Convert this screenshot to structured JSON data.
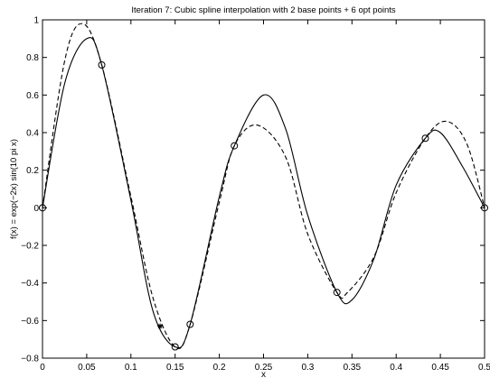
{
  "chart_data": {
    "type": "line",
    "title": "Iteration 7: Cubic spline interpolation with 2 base points + 6 opt points",
    "xlabel": "x",
    "ylabel": "f(x) = exp(−2x) sin(10 pi x)",
    "xlim": [
      0,
      0.5
    ],
    "ylim": [
      -0.8,
      1
    ],
    "x_ticks": [
      0,
      0.05,
      0.1,
      0.15,
      0.2,
      0.25,
      0.3,
      0.35,
      0.4,
      0.45,
      0.5
    ],
    "x_tick_labels": [
      "0",
      "0.05",
      "0.1",
      "0.15",
      "0.2",
      "0.25",
      "0.3",
      "0.35",
      "0.4",
      "0.45",
      "0.5"
    ],
    "y_ticks": [
      -0.8,
      -0.6,
      -0.4,
      -0.2,
      0,
      0.2,
      0.4,
      0.6,
      0.8,
      1
    ],
    "y_tick_labels": [
      "−0.8",
      "−0.6",
      "−0.4",
      "−0.2",
      "0",
      "0.2",
      "0.4",
      "0.6",
      "0.8",
      "1"
    ],
    "grid": false,
    "legend": "none",
    "series": [
      {
        "style": "solid",
        "color": "#000000",
        "x": [
          0,
          0.025,
          0.05,
          0.067,
          0.1,
          0.125,
          0.15,
          0.167,
          0.2,
          0.217,
          0.25,
          0.275,
          0.3,
          0.333,
          0.35,
          0.375,
          0.4,
          0.433,
          0.45,
          0.475,
          0.5
        ],
        "y": [
          0,
          0.66,
          0.9,
          0.76,
          0.04,
          -0.55,
          -0.74,
          -0.62,
          0.06,
          0.33,
          0.6,
          0.42,
          -0.04,
          -0.45,
          -0.49,
          -0.27,
          0.12,
          0.37,
          0.4,
          0.22,
          0
        ]
      },
      {
        "style": "dashed",
        "color": "#000000",
        "x": [
          0,
          0.025,
          0.045,
          0.067,
          0.1,
          0.125,
          0.15,
          0.167,
          0.2,
          0.217,
          0.243,
          0.275,
          0.3,
          0.333,
          0.345,
          0.375,
          0.4,
          0.433,
          0.457,
          0.48,
          0.5
        ],
        "y": [
          0,
          0.78,
          0.98,
          0.76,
          0.06,
          -0.48,
          -0.74,
          -0.62,
          0.03,
          0.33,
          0.44,
          0.27,
          -0.14,
          -0.45,
          -0.45,
          -0.26,
          0.08,
          0.37,
          0.46,
          0.34,
          0
        ]
      }
    ],
    "markers": {
      "circles": {
        "x": [
          0,
          0.067,
          0.15,
          0.167,
          0.217,
          0.333,
          0.433,
          0.5
        ],
        "y": [
          0,
          0.76,
          -0.74,
          -0.62,
          0.33,
          -0.45,
          0.37,
          0
        ]
      },
      "stars": {
        "x": [
          0.133
        ],
        "y": [
          -0.63
        ]
      }
    }
  }
}
